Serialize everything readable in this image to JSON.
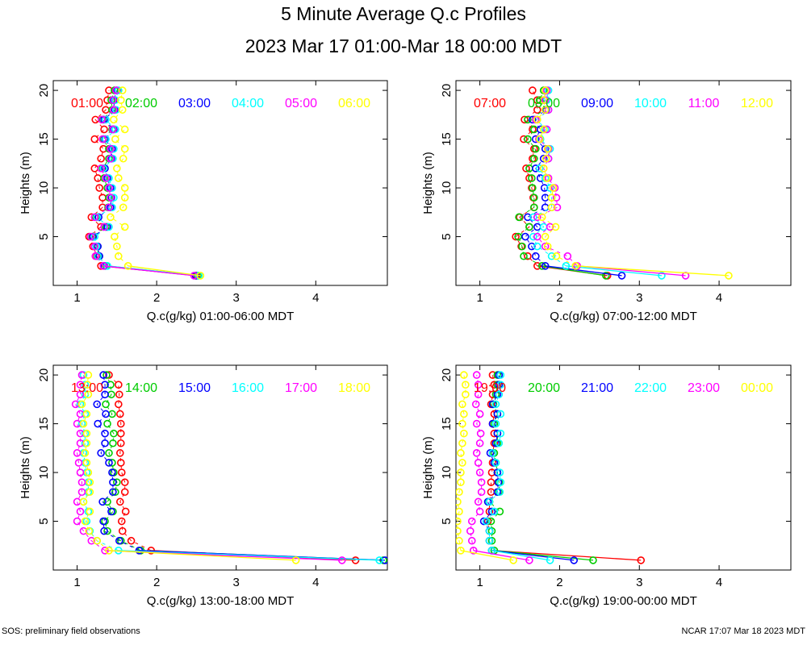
{
  "title": "5 Minute Average Q.c Profiles",
  "subtitle": "2023 Mar 17 01:00-Mar 18 00:00 MDT",
  "footer_left": "SOS: preliminary field observations",
  "footer_right": "NCAR 17:07 Mar 18 2023 MDT",
  "colors": [
    "#ff0000",
    "#00cc00",
    "#0000ff",
    "#00ffff",
    "#ff00ff",
    "#ffff00"
  ],
  "chart_data": [
    {
      "type": "line",
      "xlabel": "Q.c(g/kg) 01:00-06:00 MDT",
      "ylabel": "Heights (m)",
      "xlim": [
        0.7,
        4.9
      ],
      "ylim": [
        0,
        21
      ],
      "xticks": [
        1,
        2,
        3,
        4
      ],
      "yticks": [
        5,
        10,
        15,
        20
      ],
      "y": [
        1,
        2,
        3,
        4,
        5,
        6,
        7,
        8,
        9,
        10,
        11,
        12,
        13,
        14,
        15,
        16,
        17,
        18,
        19,
        20
      ],
      "series": [
        {
          "name": "01:00",
          "values": [
            2.5,
            1.3,
            1.25,
            1.2,
            1.15,
            1.3,
            1.18,
            1.32,
            1.32,
            1.28,
            1.26,
            1.22,
            1.3,
            1.33,
            1.22,
            1.34,
            1.23,
            1.36,
            1.38,
            1.4
          ]
        },
        {
          "name": "02:00",
          "values": [
            2.52,
            1.37,
            1.27,
            1.25,
            1.19,
            1.36,
            1.24,
            1.39,
            1.4,
            1.38,
            1.34,
            1.32,
            1.4,
            1.4,
            1.33,
            1.44,
            1.32,
            1.44,
            1.43,
            1.47
          ]
        },
        {
          "name": "03:00",
          "values": [
            2.49,
            1.34,
            1.28,
            1.26,
            1.2,
            1.38,
            1.27,
            1.42,
            1.43,
            1.42,
            1.38,
            1.35,
            1.43,
            1.44,
            1.35,
            1.46,
            1.34,
            1.47,
            1.46,
            1.5
          ]
        },
        {
          "name": "04:00",
          "values": [
            2.53,
            1.38,
            1.26,
            1.24,
            1.22,
            1.4,
            1.25,
            1.44,
            1.46,
            1.44,
            1.4,
            1.33,
            1.45,
            1.46,
            1.36,
            1.48,
            1.36,
            1.49,
            1.48,
            1.52
          ]
        },
        {
          "name": "05:00",
          "values": [
            2.47,
            1.33,
            1.23,
            1.22,
            1.17,
            1.34,
            1.22,
            1.4,
            1.42,
            1.4,
            1.36,
            1.3,
            1.42,
            1.42,
            1.32,
            1.45,
            1.31,
            1.46,
            1.45,
            1.49
          ]
        },
        {
          "name": "06:00",
          "values": [
            2.55,
            1.64,
            1.52,
            1.5,
            1.47,
            1.6,
            1.42,
            1.58,
            1.6,
            1.6,
            1.52,
            1.5,
            1.58,
            1.6,
            1.48,
            1.6,
            1.46,
            1.57,
            1.55,
            1.57
          ]
        }
      ]
    },
    {
      "type": "line",
      "xlabel": "Q.c(g/kg) 07:00-12:00 MDT",
      "ylabel": "Heights (m)",
      "xlim": [
        0.7,
        4.9
      ],
      "ylim": [
        0,
        21
      ],
      "xticks": [
        1,
        2,
        3,
        4
      ],
      "yticks": [
        5,
        10,
        15,
        20
      ],
      "y": [
        1,
        2,
        3,
        4,
        5,
        6,
        7,
        8,
        9,
        10,
        11,
        12,
        13,
        14,
        15,
        16,
        17,
        18,
        19,
        20
      ],
      "series": [
        {
          "name": "07:00",
          "values": [
            2.6,
            1.72,
            1.6,
            1.52,
            1.45,
            1.62,
            1.5,
            1.68,
            1.67,
            1.65,
            1.62,
            1.58,
            1.66,
            1.68,
            1.55,
            1.66,
            1.56,
            1.72,
            1.72,
            1.66
          ]
        },
        {
          "name": "08:00",
          "values": [
            2.58,
            1.78,
            1.55,
            1.53,
            1.48,
            1.62,
            1.49,
            1.68,
            1.68,
            1.66,
            1.65,
            1.62,
            1.68,
            1.7,
            1.6,
            1.68,
            1.6,
            1.82,
            1.75,
            1.8
          ]
        },
        {
          "name": "09:00",
          "values": [
            2.78,
            1.82,
            1.7,
            1.65,
            1.57,
            1.72,
            1.6,
            1.82,
            1.82,
            1.81,
            1.76,
            1.7,
            1.8,
            1.82,
            1.7,
            1.76,
            1.66,
            1.83,
            1.8,
            1.82
          ]
        },
        {
          "name": "10:00",
          "values": [
            3.28,
            2.08,
            1.9,
            1.72,
            1.67,
            1.8,
            1.67,
            1.9,
            1.9,
            1.88,
            1.82,
            1.75,
            1.86,
            1.88,
            1.76,
            1.82,
            1.72,
            1.86,
            1.84,
            1.86
          ]
        },
        {
          "name": "11:00",
          "values": [
            3.58,
            2.22,
            2.1,
            1.82,
            1.72,
            1.88,
            1.72,
            1.97,
            1.96,
            1.94,
            1.86,
            1.8,
            1.86,
            1.86,
            1.74,
            1.84,
            1.7,
            1.86,
            1.82,
            1.84
          ]
        },
        {
          "name": "12:00",
          "values": [
            4.12,
            2.2,
            1.96,
            1.85,
            1.82,
            1.95,
            1.78,
            1.9,
            1.9,
            1.92,
            1.84,
            1.8,
            1.83,
            1.85,
            1.75,
            1.8,
            1.72,
            1.82,
            1.8,
            1.82
          ]
        }
      ]
    },
    {
      "type": "line",
      "xlabel": "Q.c(g/kg) 13:00-18:00 MDT",
      "ylabel": "Heights (m)",
      "xlim": [
        0.7,
        4.9
      ],
      "ylim": [
        0,
        21
      ],
      "xticks": [
        1,
        2,
        3,
        4
      ],
      "yticks": [
        5,
        10,
        15,
        20
      ],
      "y": [
        1,
        2,
        3,
        4,
        5,
        6,
        7,
        8,
        9,
        10,
        11,
        12,
        13,
        14,
        15,
        16,
        17,
        18,
        19,
        20
      ],
      "series": [
        {
          "name": "13:00",
          "values": [
            4.5,
            1.93,
            1.68,
            1.57,
            1.56,
            1.61,
            1.54,
            1.6,
            1.6,
            1.56,
            1.55,
            1.54,
            1.55,
            1.55,
            1.55,
            1.54,
            1.52,
            1.53,
            1.52,
            1.4
          ]
        },
        {
          "name": "14:00",
          "values": [
            4.85,
            1.8,
            1.55,
            1.38,
            1.35,
            1.45,
            1.38,
            1.48,
            1.5,
            1.46,
            1.44,
            1.4,
            1.45,
            1.46,
            1.38,
            1.44,
            1.36,
            1.43,
            1.42,
            1.37
          ]
        },
        {
          "name": "15:00",
          "values": [
            4.87,
            1.78,
            1.53,
            1.34,
            1.33,
            1.43,
            1.32,
            1.45,
            1.45,
            1.44,
            1.4,
            1.3,
            1.35,
            1.35,
            1.26,
            1.36,
            1.25,
            1.35,
            1.35,
            1.33
          ]
        },
        {
          "name": "16:00",
          "values": [
            4.8,
            1.52,
            1.25,
            1.16,
            1.12,
            1.14,
            1.08,
            1.14,
            1.14,
            1.12,
            1.1,
            1.08,
            1.1,
            1.1,
            1.06,
            1.1,
            1.04,
            1.1,
            1.1,
            1.08
          ]
        },
        {
          "name": "17:00",
          "values": [
            4.33,
            1.35,
            1.18,
            1.08,
            1.0,
            1.04,
            1.0,
            1.06,
            1.06,
            1.04,
            1.02,
            1.0,
            1.04,
            1.04,
            1.0,
            1.04,
            0.98,
            1.04,
            1.04,
            1.06
          ]
        },
        {
          "name": "18:00",
          "values": [
            3.75,
            1.4,
            1.25,
            1.15,
            1.1,
            1.16,
            1.08,
            1.16,
            1.16,
            1.14,
            1.12,
            1.1,
            1.12,
            1.12,
            1.08,
            1.12,
            1.06,
            1.14,
            1.13,
            1.14
          ]
        }
      ]
    },
    {
      "type": "line",
      "xlabel": "Q.c(g/kg) 19:00-00:00 MDT",
      "ylabel": "Heights (m)",
      "xlim": [
        0.7,
        4.9
      ],
      "ylim": [
        0,
        21
      ],
      "xticks": [
        1,
        2,
        3,
        4
      ],
      "yticks": [
        5,
        10,
        15,
        20
      ],
      "y": [
        1,
        2,
        3,
        4,
        5,
        6,
        7,
        8,
        9,
        10,
        11,
        12,
        13,
        14,
        15,
        16,
        17,
        18,
        19,
        20
      ],
      "series": [
        {
          "name": "19:00",
          "values": [
            3.02,
            1.15,
            1.12,
            1.12,
            1.1,
            1.12,
            1.12,
            1.14,
            1.14,
            1.15,
            1.16,
            1.16,
            1.18,
            1.18,
            1.16,
            1.18,
            1.14,
            1.16,
            1.18,
            1.16
          ]
        },
        {
          "name": "20:00",
          "values": [
            2.42,
            1.18,
            1.15,
            1.15,
            1.14,
            1.25,
            1.12,
            1.24,
            1.24,
            1.22,
            1.2,
            1.18,
            1.22,
            1.22,
            1.18,
            1.22,
            1.17,
            1.2,
            1.22,
            1.22
          ]
        },
        {
          "name": "21:00",
          "values": [
            2.18,
            1.15,
            1.12,
            1.12,
            1.05,
            1.15,
            1.1,
            1.22,
            1.23,
            1.22,
            1.18,
            1.13,
            1.2,
            1.22,
            1.16,
            1.22,
            1.16,
            1.22,
            1.24,
            1.24
          ]
        },
        {
          "name": "22:00",
          "values": [
            1.88,
            1.15,
            1.12,
            1.12,
            1.08,
            1.18,
            1.12,
            1.25,
            1.26,
            1.25,
            1.2,
            1.16,
            1.24,
            1.26,
            1.2,
            1.26,
            1.2,
            1.24,
            1.26,
            1.26
          ]
        },
        {
          "name": "23:00",
          "values": [
            1.62,
            0.92,
            0.9,
            0.88,
            0.9,
            1.0,
            0.98,
            1.02,
            1.02,
            1.0,
            0.98,
            0.96,
            1.0,
            1.01,
            0.96,
            1.0,
            0.95,
            0.98,
            0.98,
            0.96
          ]
        },
        {
          "name": "00:00",
          "values": [
            1.42,
            0.76,
            0.74,
            0.72,
            0.72,
            0.74,
            0.72,
            0.74,
            0.76,
            0.76,
            0.78,
            0.76,
            0.78,
            0.8,
            0.78,
            0.8,
            0.78,
            0.82,
            0.82,
            0.8
          ]
        }
      ]
    }
  ]
}
